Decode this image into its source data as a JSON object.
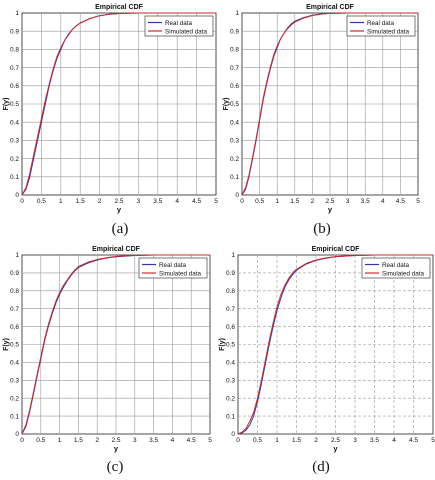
{
  "chart_data": [
    {
      "type": "line",
      "panel_label": "(a)",
      "title": "Empirical CDF",
      "xlabel": "y",
      "ylabel": "F(y)",
      "xlim": [
        0,
        5
      ],
      "ylim": [
        0,
        1
      ],
      "x_ticks": [
        "0",
        "0.5",
        "1",
        "1.5",
        "2",
        "2.5",
        "3",
        "3.5",
        "4",
        "4.5",
        "5"
      ],
      "y_ticks": [
        "0",
        "0.1",
        "0.2",
        "0.3",
        "0.4",
        "0.5",
        "0.6",
        "0.7",
        "0.8",
        "0.9",
        "1"
      ],
      "grid": true,
      "legend": "top-right",
      "x": [
        0,
        0.1,
        0.2,
        0.3,
        0.4,
        0.5,
        0.6,
        0.7,
        0.8,
        0.9,
        1.0,
        1.1,
        1.2,
        1.3,
        1.4,
        1.5,
        1.75,
        2.0,
        2.25,
        2.5,
        3.0,
        3.5,
        4.0,
        4.5,
        5.0
      ],
      "series": [
        {
          "name": "Real data",
          "color": "#2b3aa8",
          "values": [
            0,
            0.03,
            0.1,
            0.2,
            0.3,
            0.4,
            0.5,
            0.6,
            0.68,
            0.75,
            0.8,
            0.85,
            0.88,
            0.91,
            0.93,
            0.945,
            0.97,
            0.985,
            0.993,
            0.997,
            1,
            1,
            1,
            1,
            1
          ]
        },
        {
          "name": "Simulated data",
          "color": "#d12a2a",
          "values": [
            0,
            0.04,
            0.12,
            0.22,
            0.32,
            0.42,
            0.52,
            0.61,
            0.69,
            0.76,
            0.81,
            0.85,
            0.885,
            0.91,
            0.93,
            0.945,
            0.97,
            0.985,
            0.993,
            0.997,
            1,
            1,
            1,
            1,
            1
          ]
        }
      ]
    },
    {
      "type": "line",
      "panel_label": "(b)",
      "title": "Empirical CDF",
      "xlabel": "y",
      "ylabel": "F(y)",
      "xlim": [
        0,
        5
      ],
      "ylim": [
        0,
        1
      ],
      "x_ticks": [
        "0",
        "0.5",
        "1",
        "1.5",
        "2",
        "2.5",
        "3",
        "3.5",
        "4",
        "4.5",
        "5"
      ],
      "y_ticks": [
        "0",
        "0.1",
        "0.2",
        "0.3",
        "0.4",
        "0.5",
        "0.6",
        "0.7",
        "0.8",
        "0.9",
        "1"
      ],
      "grid": true,
      "legend": "top-right",
      "x": [
        0,
        0.1,
        0.2,
        0.3,
        0.4,
        0.5,
        0.6,
        0.7,
        0.8,
        0.9,
        1.0,
        1.1,
        1.2,
        1.3,
        1.4,
        1.5,
        1.75,
        2.0,
        2.25,
        2.5,
        3.0,
        3.5,
        4.0,
        4.5,
        5.0
      ],
      "series": [
        {
          "name": "Real data",
          "color": "#2b3aa8",
          "values": [
            0,
            0.03,
            0.1,
            0.2,
            0.3,
            0.41,
            0.52,
            0.61,
            0.69,
            0.76,
            0.81,
            0.86,
            0.89,
            0.92,
            0.94,
            0.955,
            0.975,
            0.988,
            0.995,
            0.998,
            1,
            1,
            1,
            1,
            1
          ]
        },
        {
          "name": "Simulated data",
          "color": "#d12a2a",
          "values": [
            0,
            0.04,
            0.11,
            0.21,
            0.31,
            0.42,
            0.53,
            0.62,
            0.7,
            0.77,
            0.82,
            0.86,
            0.89,
            0.915,
            0.935,
            0.95,
            0.972,
            0.986,
            0.994,
            0.998,
            1,
            1,
            1,
            1,
            1
          ]
        }
      ]
    },
    {
      "type": "line",
      "panel_label": "(c)",
      "title": "Empirical CDF",
      "xlabel": "y",
      "ylabel": "F(y)",
      "xlim": [
        0,
        5
      ],
      "ylim": [
        0,
        1
      ],
      "x_ticks": [
        "0",
        "0.5",
        "1",
        "1.5",
        "2",
        "2.5",
        "3",
        "3.5",
        "4",
        "4.5",
        "5"
      ],
      "y_ticks": [
        "0",
        "0.1",
        "0.2",
        "0.3",
        "0.4",
        "0.5",
        "0.6",
        "0.7",
        "0.8",
        "0.9",
        "1"
      ],
      "grid": true,
      "legend": "top-right",
      "x": [
        0,
        0.1,
        0.2,
        0.3,
        0.4,
        0.5,
        0.6,
        0.7,
        0.8,
        0.9,
        1.0,
        1.1,
        1.2,
        1.3,
        1.4,
        1.5,
        1.75,
        2.0,
        2.25,
        2.5,
        3.0,
        3.5,
        4.0,
        4.5,
        5.0
      ],
      "series": [
        {
          "name": "Real data",
          "color": "#2b3aa8",
          "values": [
            0,
            0.04,
            0.12,
            0.22,
            0.32,
            0.42,
            0.52,
            0.6,
            0.67,
            0.73,
            0.78,
            0.82,
            0.855,
            0.885,
            0.91,
            0.93,
            0.955,
            0.972,
            0.983,
            0.99,
            0.997,
            1,
            1,
            1,
            1
          ]
        },
        {
          "name": "Simulated data",
          "color": "#d12a2a",
          "values": [
            0,
            0.05,
            0.13,
            0.23,
            0.33,
            0.43,
            0.53,
            0.61,
            0.68,
            0.74,
            0.79,
            0.83,
            0.86,
            0.89,
            0.915,
            0.935,
            0.96,
            0.975,
            0.985,
            0.992,
            0.998,
            1,
            1,
            1,
            1
          ]
        }
      ]
    },
    {
      "type": "line",
      "panel_label": "(d)",
      "title": "Empirical CDF",
      "xlabel": "y",
      "ylabel": "F(y)",
      "xlim": [
        0,
        5
      ],
      "ylim": [
        0,
        1
      ],
      "x_ticks": [
        "0",
        "0.5",
        "1",
        "1.5",
        "2",
        "2.5",
        "3",
        "3.5",
        "4",
        "4.5",
        "5"
      ],
      "y_ticks": [
        "0",
        "0.1",
        "0.2",
        "0.3",
        "0.4",
        "0.5",
        "0.6",
        "0.7",
        "0.8",
        "0.9",
        "1"
      ],
      "grid": true,
      "legend": "top-right",
      "x": [
        0,
        0.1,
        0.2,
        0.3,
        0.4,
        0.5,
        0.6,
        0.7,
        0.8,
        0.9,
        1.0,
        1.1,
        1.2,
        1.3,
        1.4,
        1.5,
        1.75,
        2.0,
        2.25,
        2.5,
        3.0,
        3.5,
        4.0,
        4.5,
        5.0
      ],
      "series": [
        {
          "name": "Real data",
          "color": "#2b3aa8",
          "values": [
            0,
            0.005,
            0.02,
            0.05,
            0.1,
            0.18,
            0.28,
            0.39,
            0.5,
            0.6,
            0.69,
            0.76,
            0.82,
            0.86,
            0.89,
            0.915,
            0.95,
            0.97,
            0.982,
            0.99,
            0.997,
            1,
            1,
            1,
            1
          ]
        },
        {
          "name": "Simulated data",
          "color": "#d12a2a",
          "values": [
            0,
            0.01,
            0.03,
            0.07,
            0.12,
            0.2,
            0.3,
            0.41,
            0.52,
            0.62,
            0.71,
            0.78,
            0.83,
            0.87,
            0.9,
            0.92,
            0.953,
            0.972,
            0.984,
            0.991,
            0.997,
            1,
            1,
            1,
            1
          ]
        }
      ]
    }
  ]
}
